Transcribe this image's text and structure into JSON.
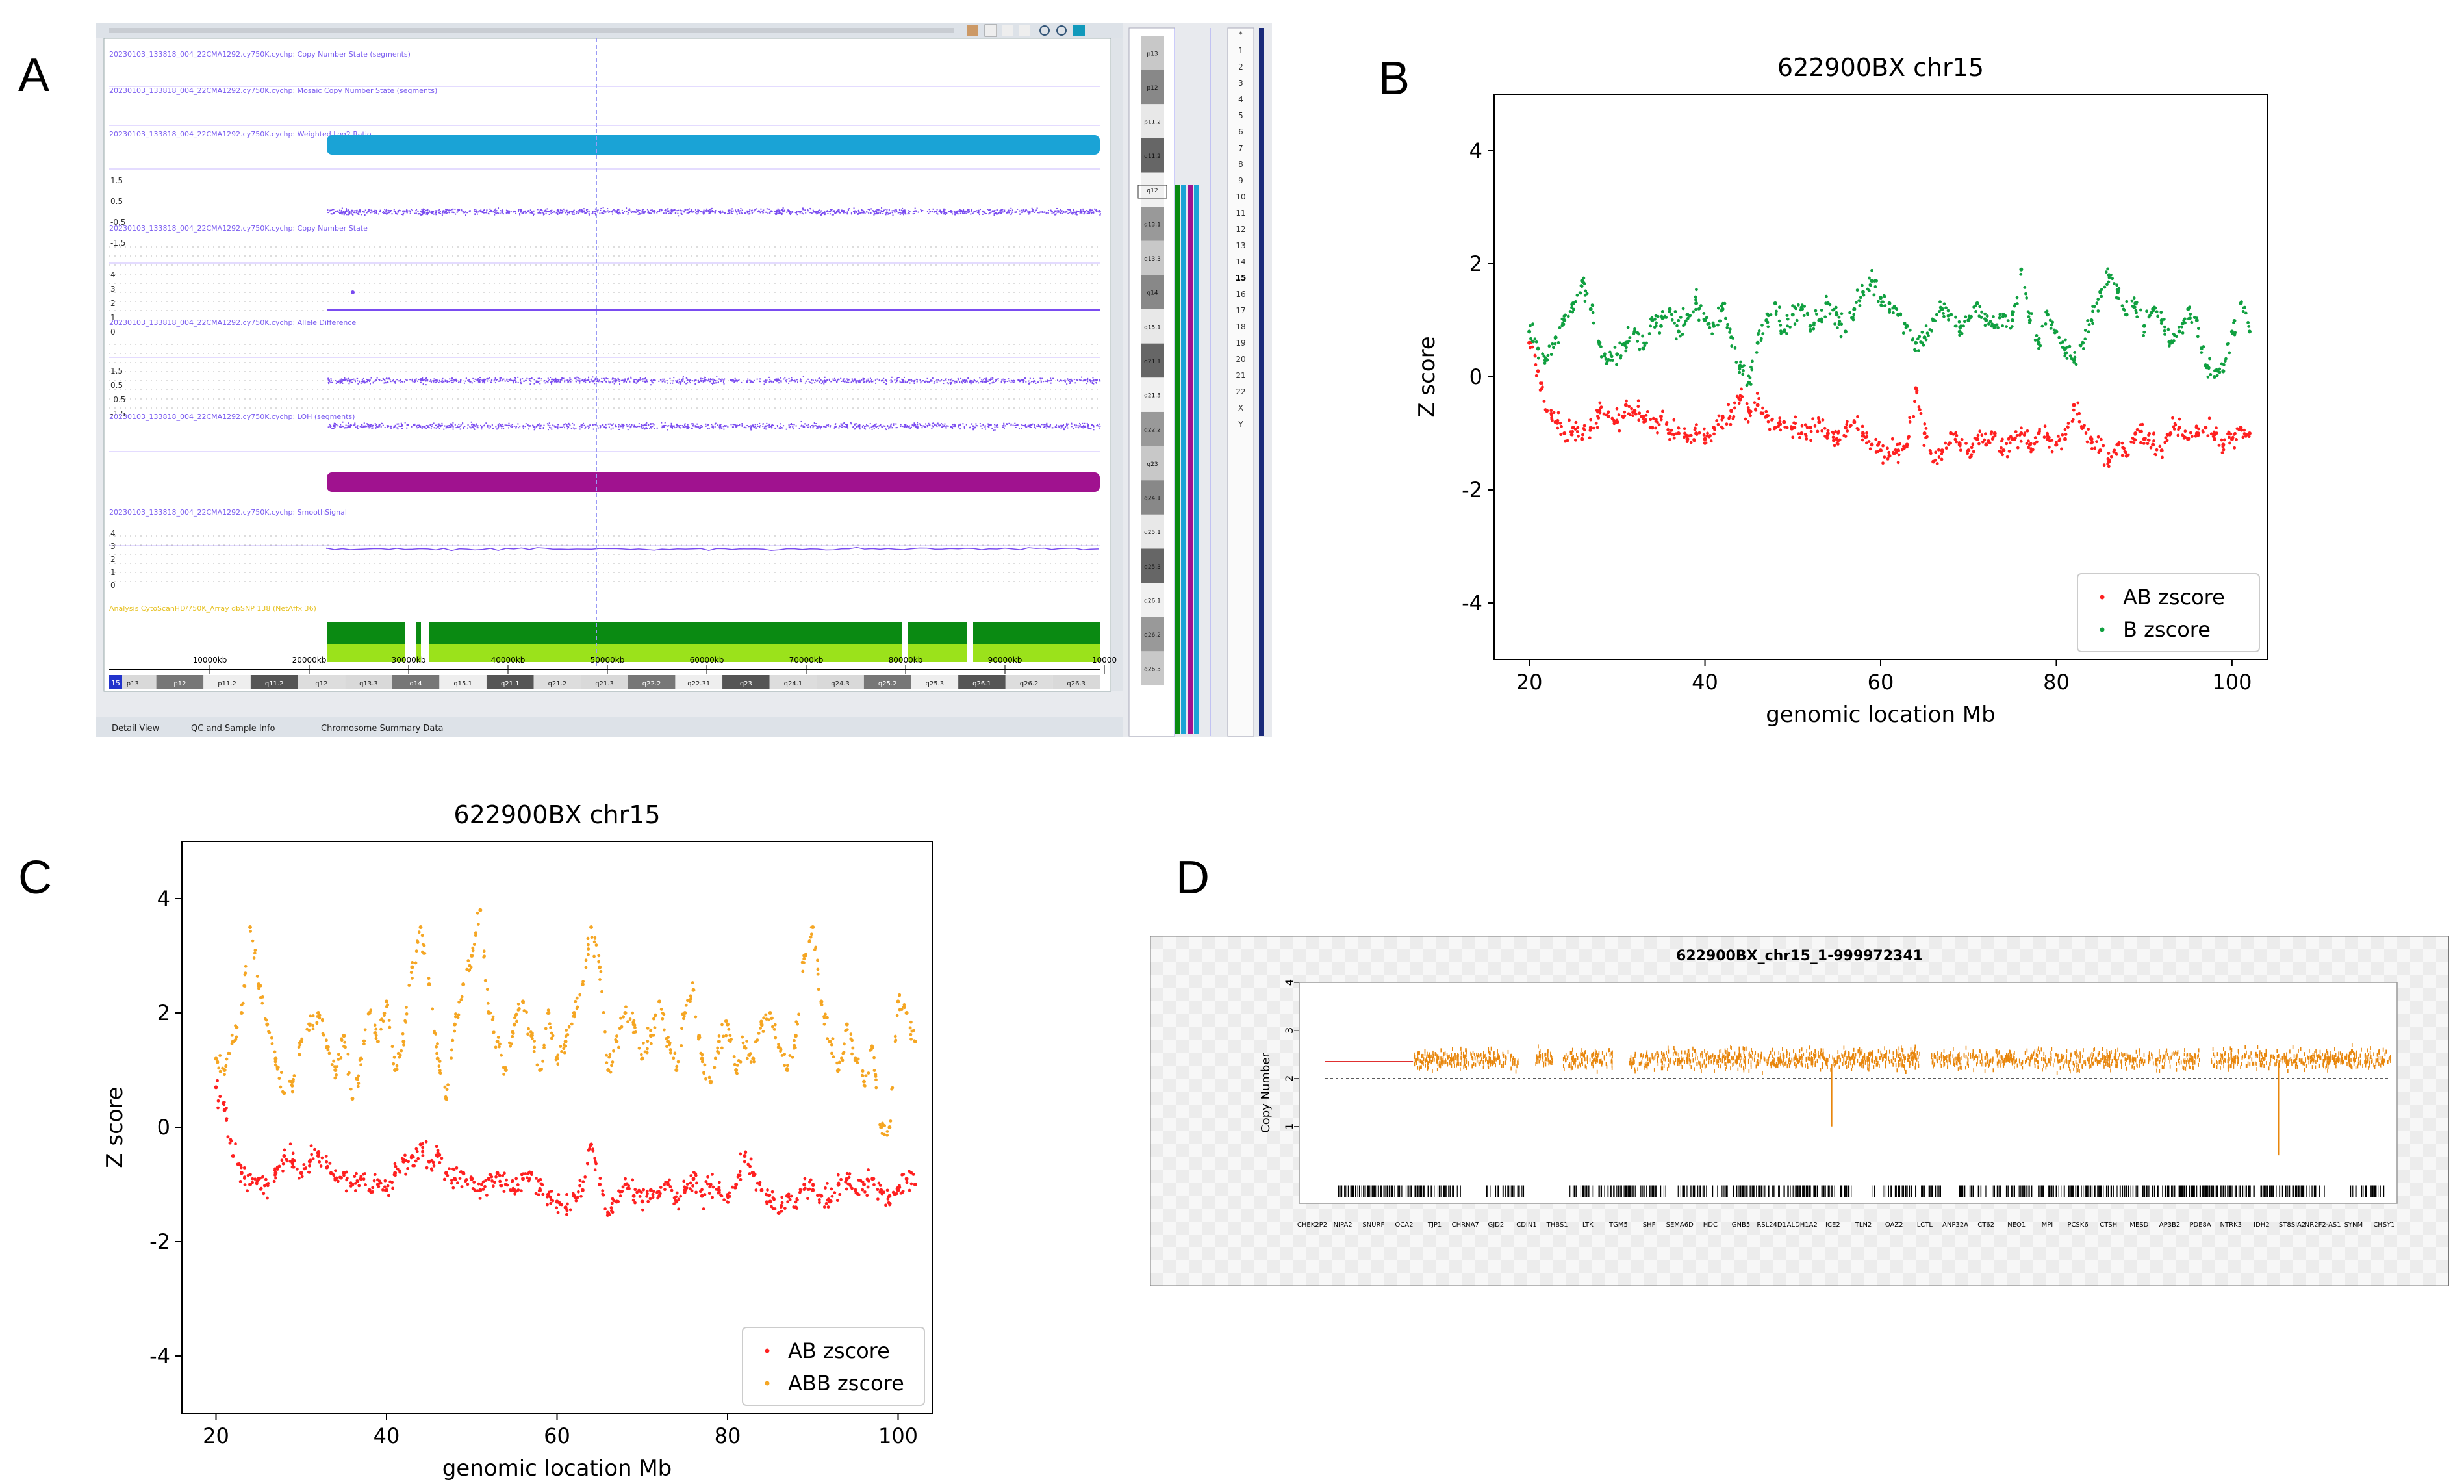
{
  "panel_labels": {
    "a": "A",
    "b": "B",
    "c": "C",
    "d": "D"
  },
  "panelA": {
    "track_titles": [
      "20230103_133818_004_22CMA1292.cy750K.cychp: Copy Number State (segments)",
      "20230103_133818_004_22CMA1292.cy750K.cychp: Mosaic Copy Number State (segments)",
      "20230103_133818_004_22CMA1292.cy750K.cychp: Weighted Log2 Ratio",
      "20230103_133818_004_22CMA1292.cy750K.cychp: Copy Number State",
      "20230103_133818_004_22CMA1292.cy750K.cychp: Allele Difference",
      "20230103_133818_004_22CMA1292.cy750K.cychp: LOH (segments)",
      "20230103_133818_004_22CMA1292.cy750K.cychp: SmoothSignal",
      "Analysis CytoScanHD/750K_Array dbSNP 138 (NetAffx 36)"
    ],
    "ruler_labels": [
      "10000kb",
      "20000kb",
      "30000kb",
      "40000kb",
      "50000kb",
      "60000kb",
      "70000kb",
      "80000kb",
      "90000kb",
      "10000"
    ],
    "bands": [
      "p13",
      "p12",
      "p11.2",
      "q11.2",
      "q12",
      "q13.3",
      "q14",
      "q15.1",
      "q21.1",
      "q21.2",
      "q21.3",
      "q22.2",
      "q22.31",
      "q23",
      "q24.1",
      "q24.3",
      "q25.2",
      "q25.3",
      "q26.1",
      "q26.2",
      "q26.3"
    ],
    "ideogram_bands": [
      "p13",
      "p12",
      "p11.2",
      "q11.2",
      "q12",
      "q13.1",
      "q13.3",
      "q14",
      "q15.1",
      "q21.1",
      "q21.3",
      "q22.2",
      "q23",
      "q24.1",
      "q25.1",
      "q25.3",
      "q26.1",
      "q26.2",
      "q26.3"
    ],
    "chrom_list": [
      "*",
      "1",
      "2",
      "3",
      "4",
      "5",
      "6",
      "7",
      "8",
      "9",
      "10",
      "11",
      "12",
      "13",
      "14",
      "15",
      "16",
      "17",
      "18",
      "19",
      "20",
      "21",
      "22",
      "X",
      "Y"
    ],
    "tabs": [
      "Detail View",
      "QC and Sample Info",
      "Chromosome Summary Data"
    ],
    "chrom_tag": "15",
    "ylabels_log2": [
      "1.5",
      "0.5",
      "-0.5",
      "-1.5"
    ],
    "ylabels_cn": [
      "4",
      "3",
      "2",
      "1",
      "0"
    ],
    "colors": {
      "cyan": "#1aa3d6",
      "purple": "#7a4cf0",
      "magenta": "#a0128f",
      "green": "#0a8a12",
      "lime": "#9be21b"
    }
  },
  "chart_data": [
    {
      "id": "B",
      "type": "scatter",
      "title": "622900BX chr15",
      "xlabel": "genomic location Mb",
      "ylabel": "Z score",
      "xlim": [
        16,
        104
      ],
      "ylim": [
        -5,
        5
      ],
      "xticks": [
        20,
        40,
        60,
        80,
        100
      ],
      "yticks": [
        -4,
        -2,
        0,
        2,
        4
      ],
      "legend_position": "lower-right",
      "series": [
        {
          "name": "AB zscore",
          "color": "#ff2020",
          "x": [
            20,
            21,
            22,
            23,
            24,
            25,
            26,
            27,
            28,
            29,
            30,
            31,
            32,
            33,
            34,
            35,
            36,
            37,
            38,
            39,
            40,
            41,
            42,
            43,
            44,
            45,
            46,
            47,
            48,
            49,
            50,
            51,
            52,
            53,
            54,
            55,
            56,
            57,
            58,
            59,
            60,
            61,
            62,
            63,
            64,
            65,
            66,
            67,
            68,
            69,
            70,
            71,
            72,
            73,
            74,
            75,
            76,
            77,
            78,
            79,
            80,
            81,
            82,
            83,
            84,
            85,
            86,
            87,
            88,
            89,
            90,
            91,
            92,
            93,
            94,
            95,
            96,
            97,
            98,
            99,
            100,
            101,
            102
          ],
          "y": [
            0.6,
            0.1,
            -0.6,
            -0.8,
            -1.0,
            -0.9,
            -1.1,
            -0.9,
            -0.6,
            -0.7,
            -0.8,
            -0.5,
            -0.6,
            -0.7,
            -0.9,
            -0.7,
            -1.0,
            -1.0,
            -1.1,
            -1.0,
            -1.1,
            -0.9,
            -0.7,
            -0.6,
            -0.4,
            -0.6,
            -0.5,
            -0.7,
            -0.9,
            -0.8,
            -0.9,
            -1.0,
            -0.9,
            -0.8,
            -1.0,
            -1.1,
            -0.9,
            -0.8,
            -1.0,
            -1.2,
            -1.3,
            -1.4,
            -1.3,
            -1.2,
            -0.2,
            -1.0,
            -1.5,
            -1.3,
            -1.0,
            -1.2,
            -1.3,
            -1.1,
            -1.2,
            -1.0,
            -1.3,
            -1.1,
            -1.0,
            -1.2,
            -1.0,
            -1.1,
            -1.2,
            -1.1,
            -0.5,
            -0.9,
            -1.1,
            -1.3,
            -1.5,
            -1.2,
            -1.4,
            -1.0,
            -1.1,
            -1.2,
            -1.3,
            -1.0,
            -0.9,
            -1.1,
            -1.0,
            -0.9,
            -1.1,
            -1.2,
            -1.1,
            -0.9,
            -1.0
          ]
        },
        {
          "name": "B zscore",
          "color": "#10a040",
          "x": [
            20,
            21,
            22,
            23,
            24,
            25,
            26,
            27,
            28,
            29,
            30,
            31,
            32,
            33,
            34,
            35,
            36,
            37,
            38,
            39,
            40,
            41,
            42,
            43,
            44,
            45,
            46,
            47,
            48,
            49,
            50,
            51,
            52,
            53,
            54,
            55,
            56,
            57,
            58,
            59,
            60,
            61,
            62,
            63,
            64,
            65,
            66,
            67,
            68,
            69,
            70,
            71,
            72,
            73,
            74,
            75,
            76,
            77,
            78,
            79,
            80,
            81,
            82,
            83,
            84,
            85,
            86,
            87,
            88,
            89,
            90,
            91,
            92,
            93,
            94,
            95,
            96,
            97,
            98,
            99,
            100,
            101,
            102
          ],
          "y": [
            0.8,
            0.5,
            0.3,
            0.7,
            1.0,
            1.3,
            1.7,
            1.2,
            0.6,
            0.3,
            0.4,
            0.6,
            0.8,
            0.5,
            1.0,
            0.9,
            1.2,
            0.8,
            1.1,
            1.3,
            1.0,
            0.9,
            1.2,
            0.7,
            0.2,
            -0.1,
            0.6,
            1.0,
            1.3,
            0.8,
            1.1,
            1.2,
            0.9,
            1.0,
            1.3,
            1.1,
            0.8,
            1.2,
            1.5,
            1.7,
            1.4,
            1.3,
            1.1,
            0.9,
            0.6,
            0.7,
            1.0,
            1.2,
            1.1,
            0.8,
            1.0,
            1.3,
            1.0,
            0.9,
            1.1,
            1.0,
            1.9,
            1.0,
            0.6,
            1.1,
            0.8,
            0.5,
            0.3,
            0.6,
            1.0,
            1.5,
            1.8,
            1.5,
            1.1,
            1.3,
            0.9,
            1.2,
            1.0,
            0.6,
            0.8,
            1.2,
            1.0,
            0.2,
            0.0,
            0.1,
            0.8,
            1.3,
            0.8
          ]
        }
      ]
    },
    {
      "id": "C",
      "type": "scatter",
      "title": "622900BX chr15",
      "xlabel": "genomic location Mb",
      "ylabel": "Z score",
      "xlim": [
        16,
        104
      ],
      "ylim": [
        -5,
        5
      ],
      "xticks": [
        20,
        40,
        60,
        80,
        100
      ],
      "yticks": [
        -4,
        -2,
        0,
        2,
        4
      ],
      "legend_position": "lower-right",
      "series": [
        {
          "name": "AB zscore",
          "color": "#ff2020",
          "x": [
            20,
            21,
            22,
            23,
            24,
            25,
            26,
            27,
            28,
            29,
            30,
            31,
            32,
            33,
            34,
            35,
            36,
            37,
            38,
            39,
            40,
            41,
            42,
            43,
            44,
            45,
            46,
            47,
            48,
            49,
            50,
            51,
            52,
            53,
            54,
            55,
            56,
            57,
            58,
            59,
            60,
            61,
            62,
            63,
            64,
            65,
            66,
            67,
            68,
            69,
            70,
            71,
            72,
            73,
            74,
            75,
            76,
            77,
            78,
            79,
            80,
            81,
            82,
            83,
            84,
            85,
            86,
            87,
            88,
            89,
            90,
            91,
            92,
            93,
            94,
            95,
            96,
            97,
            98,
            99,
            100,
            101,
            102
          ],
          "y": [
            0.7,
            0.3,
            -0.5,
            -0.8,
            -1.0,
            -0.9,
            -1.0,
            -0.8,
            -0.5,
            -0.6,
            -0.8,
            -0.6,
            -0.5,
            -0.7,
            -0.9,
            -0.8,
            -1.0,
            -0.9,
            -1.1,
            -1.0,
            -1.1,
            -0.8,
            -0.6,
            -0.5,
            -0.3,
            -0.6,
            -0.5,
            -0.8,
            -0.9,
            -0.8,
            -0.9,
            -1.1,
            -0.9,
            -0.8,
            -1.0,
            -1.1,
            -0.9,
            -0.8,
            -1.1,
            -1.2,
            -1.3,
            -1.4,
            -1.2,
            -1.1,
            -0.3,
            -1.0,
            -1.5,
            -1.3,
            -1.0,
            -1.2,
            -1.3,
            -1.1,
            -1.2,
            -1.0,
            -1.3,
            -1.1,
            -0.9,
            -1.2,
            -1.0,
            -1.1,
            -1.2,
            -1.0,
            -0.5,
            -0.8,
            -1.1,
            -1.3,
            -1.5,
            -1.2,
            -1.4,
            -1.0,
            -1.1,
            -1.2,
            -1.3,
            -1.0,
            -0.9,
            -1.1,
            -1.0,
            -0.9,
            -1.1,
            -1.2,
            -1.1,
            -0.9,
            -1.0
          ]
        },
        {
          "name": "ABB zscore",
          "color": "#f5a623",
          "x": [
            20,
            21,
            22,
            23,
            24,
            25,
            26,
            27,
            28,
            29,
            30,
            31,
            32,
            33,
            34,
            35,
            36,
            37,
            38,
            39,
            40,
            41,
            42,
            43,
            44,
            45,
            46,
            47,
            48,
            49,
            50,
            51,
            52,
            53,
            54,
            55,
            56,
            57,
            58,
            59,
            60,
            61,
            62,
            63,
            64,
            65,
            66,
            67,
            68,
            69,
            70,
            71,
            72,
            73,
            74,
            75,
            76,
            77,
            78,
            79,
            80,
            81,
            82,
            83,
            84,
            85,
            86,
            87,
            88,
            89,
            90,
            91,
            92,
            93,
            94,
            95,
            96,
            97,
            98,
            99,
            100,
            101,
            102
          ],
          "y": [
            1.2,
            1.0,
            1.5,
            2.0,
            3.5,
            2.5,
            1.8,
            1.2,
            0.6,
            0.8,
            1.5,
            1.8,
            2.0,
            1.4,
            1.0,
            1.6,
            0.5,
            1.2,
            2.0,
            1.5,
            2.2,
            1.0,
            1.5,
            2.8,
            3.5,
            2.5,
            1.2,
            0.5,
            1.8,
            2.5,
            3.0,
            3.8,
            2.0,
            1.5,
            1.0,
            1.8,
            2.2,
            1.6,
            1.0,
            2.0,
            1.2,
            1.5,
            2.0,
            2.5,
            3.5,
            2.8,
            1.0,
            1.5,
            2.0,
            1.8,
            1.2,
            1.6,
            2.2,
            1.5,
            1.0,
            2.0,
            2.4,
            1.2,
            0.8,
            1.5,
            1.8,
            1.0,
            1.4,
            1.2,
            1.8,
            2.0,
            1.4,
            1.0,
            1.6,
            3.0,
            3.5,
            2.2,
            1.5,
            1.0,
            1.8,
            1.2,
            0.8,
            1.4,
            0.0,
            0.0,
            2.2,
            2.0,
            1.5
          ]
        }
      ]
    },
    {
      "id": "D",
      "type": "scatter",
      "title": "622900BX_chr15_1-999972341",
      "xlabel": "",
      "ylabel": "Copy Number",
      "ylim": [
        -0.6,
        4
      ],
      "yticks": [
        1,
        2,
        3,
        4
      ],
      "gene_labels": [
        "CHEK2P2",
        "NIPA2",
        "SNURF",
        "OCA2",
        "TJP1",
        "CHRNA7",
        "GJD2",
        "CDIN1",
        "THBS1",
        "LTK",
        "TGM5",
        "SHF",
        "SEMA6D",
        "HDC",
        "GNB5",
        "RSL24D1",
        "ALDH1A2",
        "ICE2",
        "TLN2",
        "OAZ2",
        "LCTL",
        "ANP32A",
        "CT62",
        "NEO1",
        "MPI",
        "PCSK6",
        "CTSH",
        "MESD",
        "AP3B2",
        "PDE8A",
        "NTRK3",
        "IDH2",
        "ST8SIA2",
        "NR2F2-AS1",
        "SYNM",
        "CHSY1"
      ],
      "series": [
        {
          "name": "",
          "color": "#e8860c",
          "baseline": 2.4,
          "segment_start_frac": 0.08
        }
      ]
    }
  ]
}
